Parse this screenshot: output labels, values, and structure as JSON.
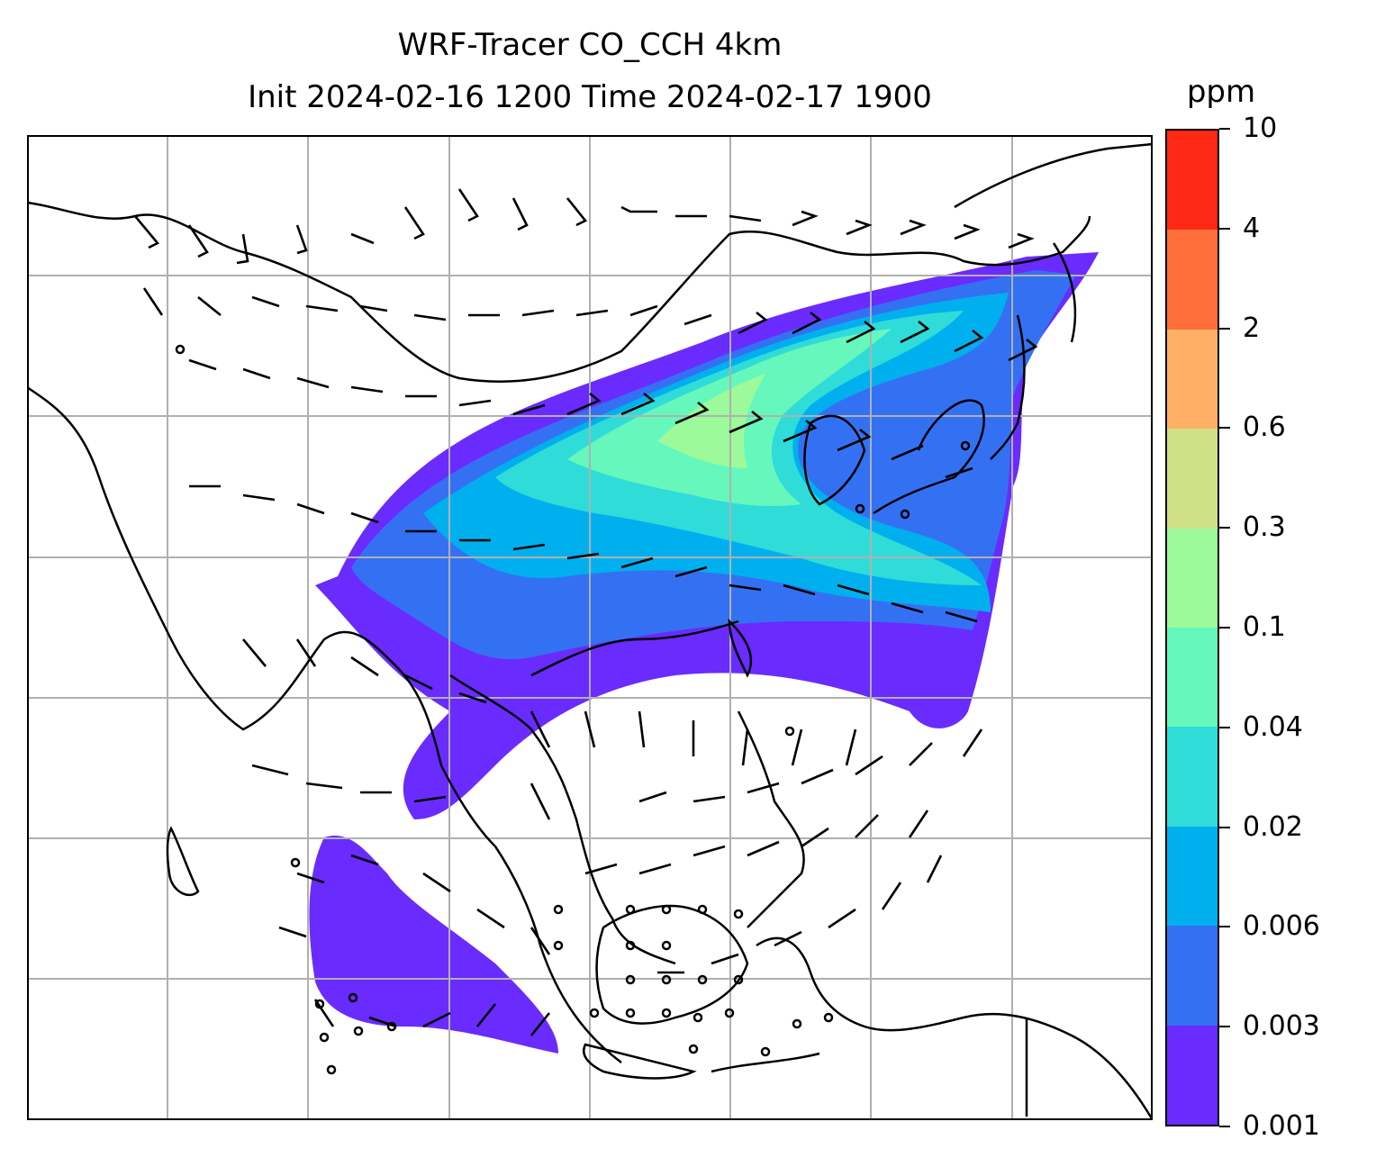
{
  "title": {
    "line1": "WRF-Tracer CO_CCH 4km",
    "line2": "Init 2024-02-16 1200 Time 2024-02-17 1900"
  },
  "colorbar": {
    "unit": "ppm",
    "tick_labels": [
      "0.001",
      "0.003",
      "0.006",
      "0.02",
      "0.04",
      "0.1",
      "0.3",
      "0.6",
      "2",
      "4",
      "10"
    ],
    "colors": [
      "#6a2bff",
      "#3471f2",
      "#00b0ee",
      "#2fdcd8",
      "#66f7bd",
      "#9cfa9a",
      "#cfe085",
      "#ffb066",
      "#ff6e3a",
      "#ff2815"
    ]
  },
  "map": {
    "gridlines": true,
    "coastlines": true,
    "wind_barbs": true
  }
}
